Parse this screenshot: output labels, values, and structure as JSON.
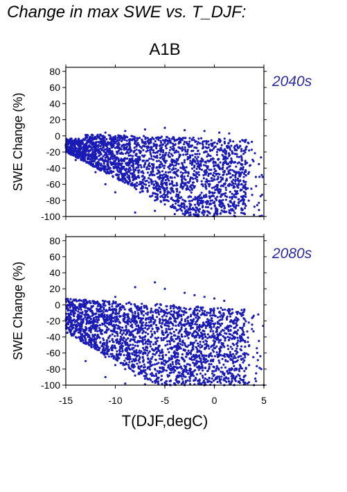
{
  "title": "Change in max SWE vs. T_DJF:",
  "scenario": "A1B",
  "xlabel": "T(DJF,degC)",
  "colors": {
    "points": "#1a1ab4",
    "axes": "#000000",
    "period_label": "#2a2aa0"
  },
  "chart_data": [
    {
      "type": "scatter",
      "period": "2040s",
      "xlim": [
        -15,
        5
      ],
      "ylim": [
        -100,
        85
      ],
      "xticks": [
        -15,
        -10,
        -5,
        0,
        5
      ],
      "yticks": [
        -100,
        -80,
        -60,
        -40,
        -20,
        0,
        20,
        40,
        60,
        80
      ],
      "ylabel": "SWE Change (%)",
      "xlabel": "",
      "tick_labels_x": false,
      "grid": false,
      "points": [
        [
          -14.8,
          -5
        ],
        [
          -14.2,
          -8
        ],
        [
          -13.5,
          -12
        ],
        [
          -13,
          -2
        ],
        [
          -12.5,
          -18
        ],
        [
          -12,
          -25
        ],
        [
          -11.5,
          -4
        ],
        [
          -11,
          -30
        ],
        [
          -10.5,
          -40
        ],
        [
          -10,
          -15
        ],
        [
          -9.5,
          -45
        ],
        [
          -9,
          -55
        ],
        [
          -8.5,
          -20
        ],
        [
          -8,
          -60
        ],
        [
          -7.5,
          -70
        ],
        [
          -7,
          -35
        ],
        [
          -6.5,
          -75
        ],
        [
          -6,
          -80
        ],
        [
          -5.5,
          -50
        ],
        [
          -5,
          -85
        ],
        [
          -4.5,
          -60
        ],
        [
          -4,
          -88
        ],
        [
          -3.5,
          -70
        ],
        [
          -3,
          -90
        ],
        [
          -2.5,
          -75
        ],
        [
          -2,
          -92
        ],
        [
          -1.5,
          -80
        ],
        [
          -1,
          -95
        ],
        [
          -0.5,
          -85
        ],
        [
          0,
          -97
        ],
        [
          0.5,
          -70
        ],
        [
          1,
          -90
        ],
        [
          1.5,
          -60
        ],
        [
          2,
          -85
        ],
        [
          2.5,
          -50
        ],
        [
          3,
          -75
        ],
        [
          3.5,
          -45
        ],
        [
          4,
          -98
        ],
        [
          4.5,
          -35
        ],
        [
          4.8,
          -99
        ],
        [
          -7,
          8
        ],
        [
          -5,
          10
        ],
        [
          -3,
          7
        ],
        [
          -1,
          6
        ],
        [
          0.5,
          4
        ],
        [
          1.5,
          3
        ],
        [
          -9,
          6
        ],
        [
          -11,
          4
        ],
        [
          -13,
          1
        ],
        [
          -8,
          -95
        ],
        [
          -6,
          -93
        ],
        [
          -4,
          -97
        ],
        [
          -2,
          -98
        ],
        [
          0,
          -99
        ],
        [
          2,
          -99
        ],
        [
          3,
          -96
        ],
        [
          -10,
          -70
        ],
        [
          -12,
          -45
        ],
        [
          -14,
          -30
        ],
        [
          -11,
          -60
        ]
      ]
    },
    {
      "type": "scatter",
      "period": "2080s",
      "xlim": [
        -15,
        5
      ],
      "ylim": [
        -100,
        85
      ],
      "xticks": [
        -15,
        -10,
        -5,
        0,
        5
      ],
      "yticks": [
        -100,
        -80,
        -60,
        -40,
        -20,
        0,
        20,
        40,
        60,
        80
      ],
      "ylabel": "SWE Change (%)",
      "xlabel": "T(DJF,degC)",
      "tick_labels_x": true,
      "grid": false,
      "points": [
        [
          -15,
          -18
        ],
        [
          -14.5,
          -22
        ],
        [
          -14,
          -30
        ],
        [
          -13.5,
          -15
        ],
        [
          -13,
          -45
        ],
        [
          -12.5,
          -8
        ],
        [
          -12,
          -55
        ],
        [
          -11.5,
          -5
        ],
        [
          -11,
          -65
        ],
        [
          -10.5,
          -20
        ],
        [
          -10,
          -75
        ],
        [
          -9.5,
          -35
        ],
        [
          -9,
          -80
        ],
        [
          -8.5,
          -45
        ],
        [
          -8,
          -88
        ],
        [
          -7.5,
          -60
        ],
        [
          -7,
          -92
        ],
        [
          -6.5,
          -70
        ],
        [
          -6,
          -95
        ],
        [
          -5.5,
          -78
        ],
        [
          -5,
          -97
        ],
        [
          -4.5,
          -85
        ],
        [
          -4,
          -98
        ],
        [
          -3.5,
          -88
        ],
        [
          -3,
          -99
        ],
        [
          -2.5,
          -90
        ],
        [
          -2,
          -99
        ],
        [
          -1.5,
          -93
        ],
        [
          -1,
          -100
        ],
        [
          -0.5,
          -95
        ],
        [
          0,
          -100
        ],
        [
          0.5,
          -90
        ],
        [
          1,
          -100
        ],
        [
          1.5,
          -85
        ],
        [
          2,
          -100
        ],
        [
          2.5,
          -80
        ],
        [
          3,
          -99
        ],
        [
          3.5,
          -75
        ],
        [
          4,
          -100
        ],
        [
          4.5,
          -45
        ],
        [
          5,
          -100
        ],
        [
          -8,
          22
        ],
        [
          -6,
          28
        ],
        [
          -5,
          20
        ],
        [
          -3,
          15
        ],
        [
          -2,
          12
        ],
        [
          -1,
          10
        ],
        [
          0,
          8
        ],
        [
          1,
          5
        ],
        [
          -10,
          10
        ],
        [
          -12,
          2
        ],
        [
          -14,
          -5
        ],
        [
          -9,
          -98
        ],
        [
          -7,
          -99
        ],
        [
          -5,
          -100
        ],
        [
          -3,
          -100
        ],
        [
          -1,
          -100
        ],
        [
          1,
          -100
        ],
        [
          -11,
          -90
        ],
        [
          -13,
          -70
        ]
      ]
    }
  ]
}
